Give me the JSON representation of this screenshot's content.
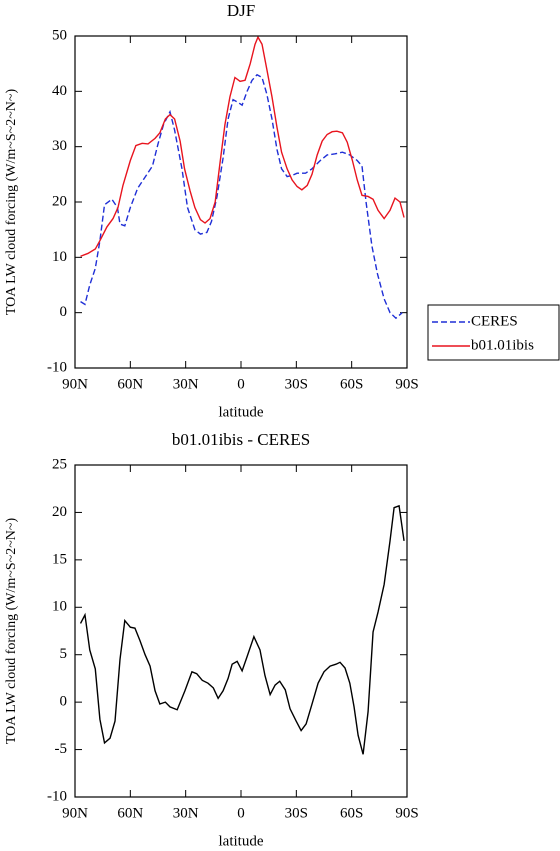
{
  "chart_data": [
    {
      "type": "line",
      "title": "DJF",
      "x_label": "latitude",
      "y_label": "TOA LW cloud forcing (W/m~S~2~N~)",
      "xlim": [
        90,
        -90
      ],
      "xticks": [
        {
          "value": 90,
          "label": "90N"
        },
        {
          "value": 60,
          "label": "60N"
        },
        {
          "value": 30,
          "label": "30N"
        },
        0,
        {
          "value": -30,
          "label": "30S"
        },
        {
          "value": -60,
          "label": "60S"
        },
        {
          "value": -90,
          "label": "90S"
        }
      ],
      "ylim": [
        -10,
        50
      ],
      "yticks": [
        -10,
        0,
        10,
        20,
        30,
        40,
        50
      ],
      "legend": "right",
      "series": [
        {
          "name": "CERES",
          "color": "#1f2fd6",
          "line_style": "dashed",
          "x": [
            87,
            84.6,
            82,
            79,
            76.5,
            74,
            70,
            67,
            65.6,
            63,
            60,
            56,
            52,
            48,
            45,
            42,
            38.5,
            36,
            32,
            29,
            25,
            22,
            18.5,
            16,
            13,
            9.7,
            7,
            4.3,
            1.6,
            -0.6,
            -3.3,
            -6,
            -8.7,
            -11.4,
            -14,
            -16.8,
            -19.5,
            -22,
            -25,
            -27.7,
            -30.4,
            -35,
            -38.5,
            -43,
            -46.7,
            -51,
            -55,
            -59,
            -63,
            -65.6,
            -67.8,
            -71,
            -74,
            -77.6,
            -80.8,
            -84,
            -87.4
          ],
          "values": [
            2,
            1.5,
            5,
            8,
            13,
            19.5,
            20.5,
            19,
            16,
            15.7,
            19,
            22.5,
            24.5,
            26.5,
            30.5,
            34,
            36.3,
            33,
            26,
            19,
            15,
            14.2,
            14.5,
            16.5,
            21,
            28,
            35,
            38.5,
            38,
            37.5,
            40,
            42,
            43,
            42.5,
            39.5,
            35,
            29.5,
            26,
            24.6,
            24.8,
            25.2,
            25.2,
            26,
            27.5,
            28.5,
            28.7,
            29,
            28.5,
            27.5,
            26.5,
            20,
            12,
            7,
            2.5,
            0,
            -1,
            0
          ]
        },
        {
          "name": "b01.01ibis",
          "color": "#e8141e",
          "line_style": "solid",
          "x": [
            87,
            83,
            79,
            76.5,
            72.7,
            69.4,
            66.7,
            64,
            60,
            57,
            53.6,
            50.4,
            46.6,
            44,
            41,
            38.5,
            36,
            33,
            30.6,
            27.6,
            25,
            22,
            19.5,
            16.8,
            14,
            11.4,
            8.7,
            6,
            3.3,
            0.5,
            -2.2,
            -5,
            -7.6,
            -9.2,
            -11.4,
            -14,
            -16.8,
            -19.5,
            -22,
            -25,
            -27.7,
            -30.4,
            -33,
            -35.9,
            -38.5,
            -41.3,
            -44,
            -46.7,
            -49.4,
            -52,
            -55,
            -57.6,
            -60.4,
            -63,
            -65.6,
            -68.9,
            -71.6,
            -74.3,
            -77.6,
            -80.8,
            -83.5,
            -86.2,
            -88.4
          ],
          "values": [
            10.2,
            10.7,
            11.5,
            13,
            15.5,
            17,
            19,
            23,
            27.5,
            30.2,
            30.6,
            30.5,
            31.5,
            32.5,
            35,
            35.8,
            35,
            31,
            26,
            22,
            19,
            16.8,
            16.2,
            17,
            20,
            27,
            34,
            39,
            42.5,
            41.8,
            42,
            45,
            48.5,
            49.8,
            48.5,
            44,
            39,
            33.5,
            29,
            26,
            24,
            22.8,
            22.2,
            23,
            25,
            28.5,
            31,
            32.2,
            32.7,
            32.8,
            32.5,
            30.8,
            27.5,
            24,
            21.2,
            21,
            20.5,
            18.5,
            17,
            18.5,
            20.7,
            20,
            17.2
          ]
        }
      ]
    },
    {
      "type": "line",
      "title": "b01.01ibis - CERES",
      "x_label": "latitude",
      "y_label": "TOA LW cloud forcing (W/m~S~2~N~)",
      "xlim": [
        90,
        -90
      ],
      "xticks": [
        {
          "value": 90,
          "label": "90N"
        },
        {
          "value": 60,
          "label": "60N"
        },
        {
          "value": 30,
          "label": "30N"
        },
        0,
        {
          "value": -30,
          "label": "30S"
        },
        {
          "value": -60,
          "label": "60S"
        },
        {
          "value": -90,
          "label": "90S"
        }
      ],
      "ylim": [
        -10,
        25
      ],
      "yticks": [
        -10,
        -5,
        0,
        5,
        10,
        15,
        20,
        25
      ],
      "series": [
        {
          "color": "#000000",
          "line_style": "solid",
          "x": [
            87,
            84.6,
            82,
            79,
            76.5,
            74,
            71,
            68.3,
            65.6,
            63,
            60,
            57.5,
            54.8,
            52,
            49.3,
            46.6,
            44,
            41,
            38.5,
            34.6,
            30.4,
            26.6,
            24,
            21,
            17.9,
            15,
            12.4,
            9.7,
            7,
            4.8,
            2.1,
            -0.6,
            -3.3,
            -7,
            -10.3,
            -13,
            -15.8,
            -18.5,
            -21,
            -24,
            -26.6,
            -29.9,
            -32.6,
            -35.3,
            -38.5,
            -41.8,
            -45,
            -48.3,
            -51.5,
            -53.7,
            -56.4,
            -59,
            -61.3,
            -63.5,
            -66.2,
            -68.9,
            -71.6,
            -74.3,
            -77.6,
            -80.8,
            -83,
            -85.7,
            -88.4
          ],
          "values": [
            8.3,
            9.2,
            5.5,
            3.5,
            -1.8,
            -4.3,
            -3.8,
            -2,
            4.5,
            8.6,
            7.9,
            7.8,
            6.5,
            5,
            3.8,
            1.2,
            -0.2,
            0,
            -0.5,
            -0.8,
            1.2,
            3.2,
            3,
            2.3,
            2,
            1.5,
            0.4,
            1.2,
            2.5,
            4,
            4.3,
            3.3,
            4.8,
            6.9,
            5.5,
            2.8,
            0.8,
            1.8,
            2.2,
            1.3,
            -0.7,
            -2,
            -3,
            -2.3,
            -0.2,
            2,
            3.2,
            3.8,
            4,
            4.2,
            3.6,
            2,
            -0.5,
            -3.5,
            -5.5,
            -1,
            7.4,
            9.5,
            12.4,
            17,
            20.5,
            20.7,
            17
          ]
        }
      ]
    }
  ]
}
